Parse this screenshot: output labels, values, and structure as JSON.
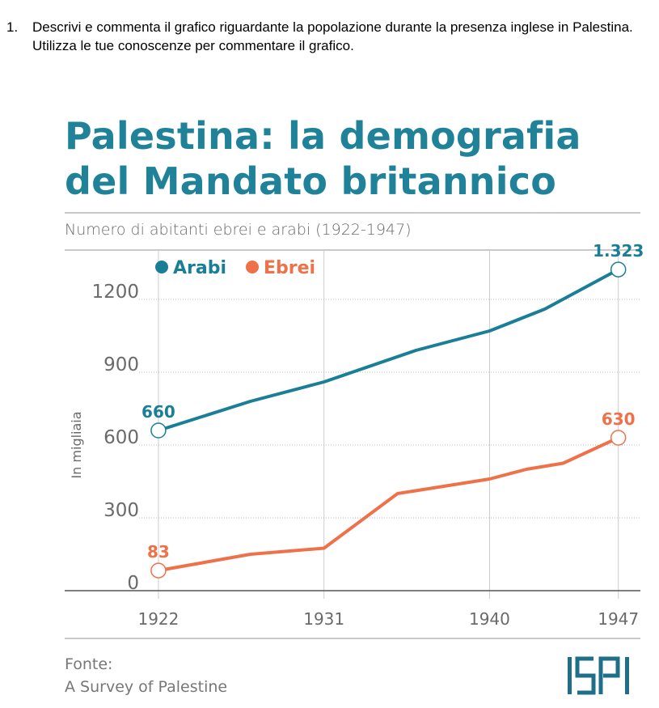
{
  "question": {
    "number": "1.",
    "text": "Descrivi e commenta il grafico riguardante la popolazione durante la presenza inglese in Palestina. Utilizza le tue conoscenze per commentare il grafico."
  },
  "colors": {
    "title": "#1f8299",
    "arabi": "#1a7f96",
    "ebrei": "#ef7149",
    "grid": "#cccccc",
    "text": "#6a6a6a"
  },
  "chart_data": {
    "type": "line",
    "title_line1": "Palestina: la demografia",
    "title_line2": "del Mandato britannico",
    "subtitle": "Numero di abitanti ebrei e arabi (1922-1947)",
    "ylabel": "In migliaia",
    "xlabel": "",
    "ylim": [
      0,
      1400
    ],
    "xlim": [
      1921.3,
      1948.2
    ],
    "yticks": [
      0,
      300,
      600,
      900,
      1200
    ],
    "ytick_labels": [
      "0",
      "300",
      "600",
      "900",
      "1200"
    ],
    "xticks": [
      1922,
      1931,
      1940,
      1947
    ],
    "xtick_labels": [
      "1922",
      "1931",
      "1940",
      "1947"
    ],
    "legend": [
      "Arabi",
      "Ebrei"
    ],
    "series": [
      {
        "name": "Arabi",
        "x": [
          1922,
          1927,
          1931,
          1936,
          1940,
          1943,
          1947
        ],
        "values": [
          660,
          780,
          860,
          990,
          1070,
          1160,
          1323
        ],
        "start_label": "660",
        "end_label": "1.323"
      },
      {
        "name": "Ebrei",
        "x": [
          1922,
          1927,
          1931,
          1935,
          1940,
          1942,
          1944,
          1947
        ],
        "values": [
          83,
          150,
          175,
          400,
          460,
          500,
          525,
          630
        ],
        "start_label": "83",
        "end_label": "630"
      }
    ]
  },
  "source": {
    "label": "Fonte:",
    "value": "A Survey of Palestine"
  },
  "logo": {
    "text": "ISPI"
  }
}
